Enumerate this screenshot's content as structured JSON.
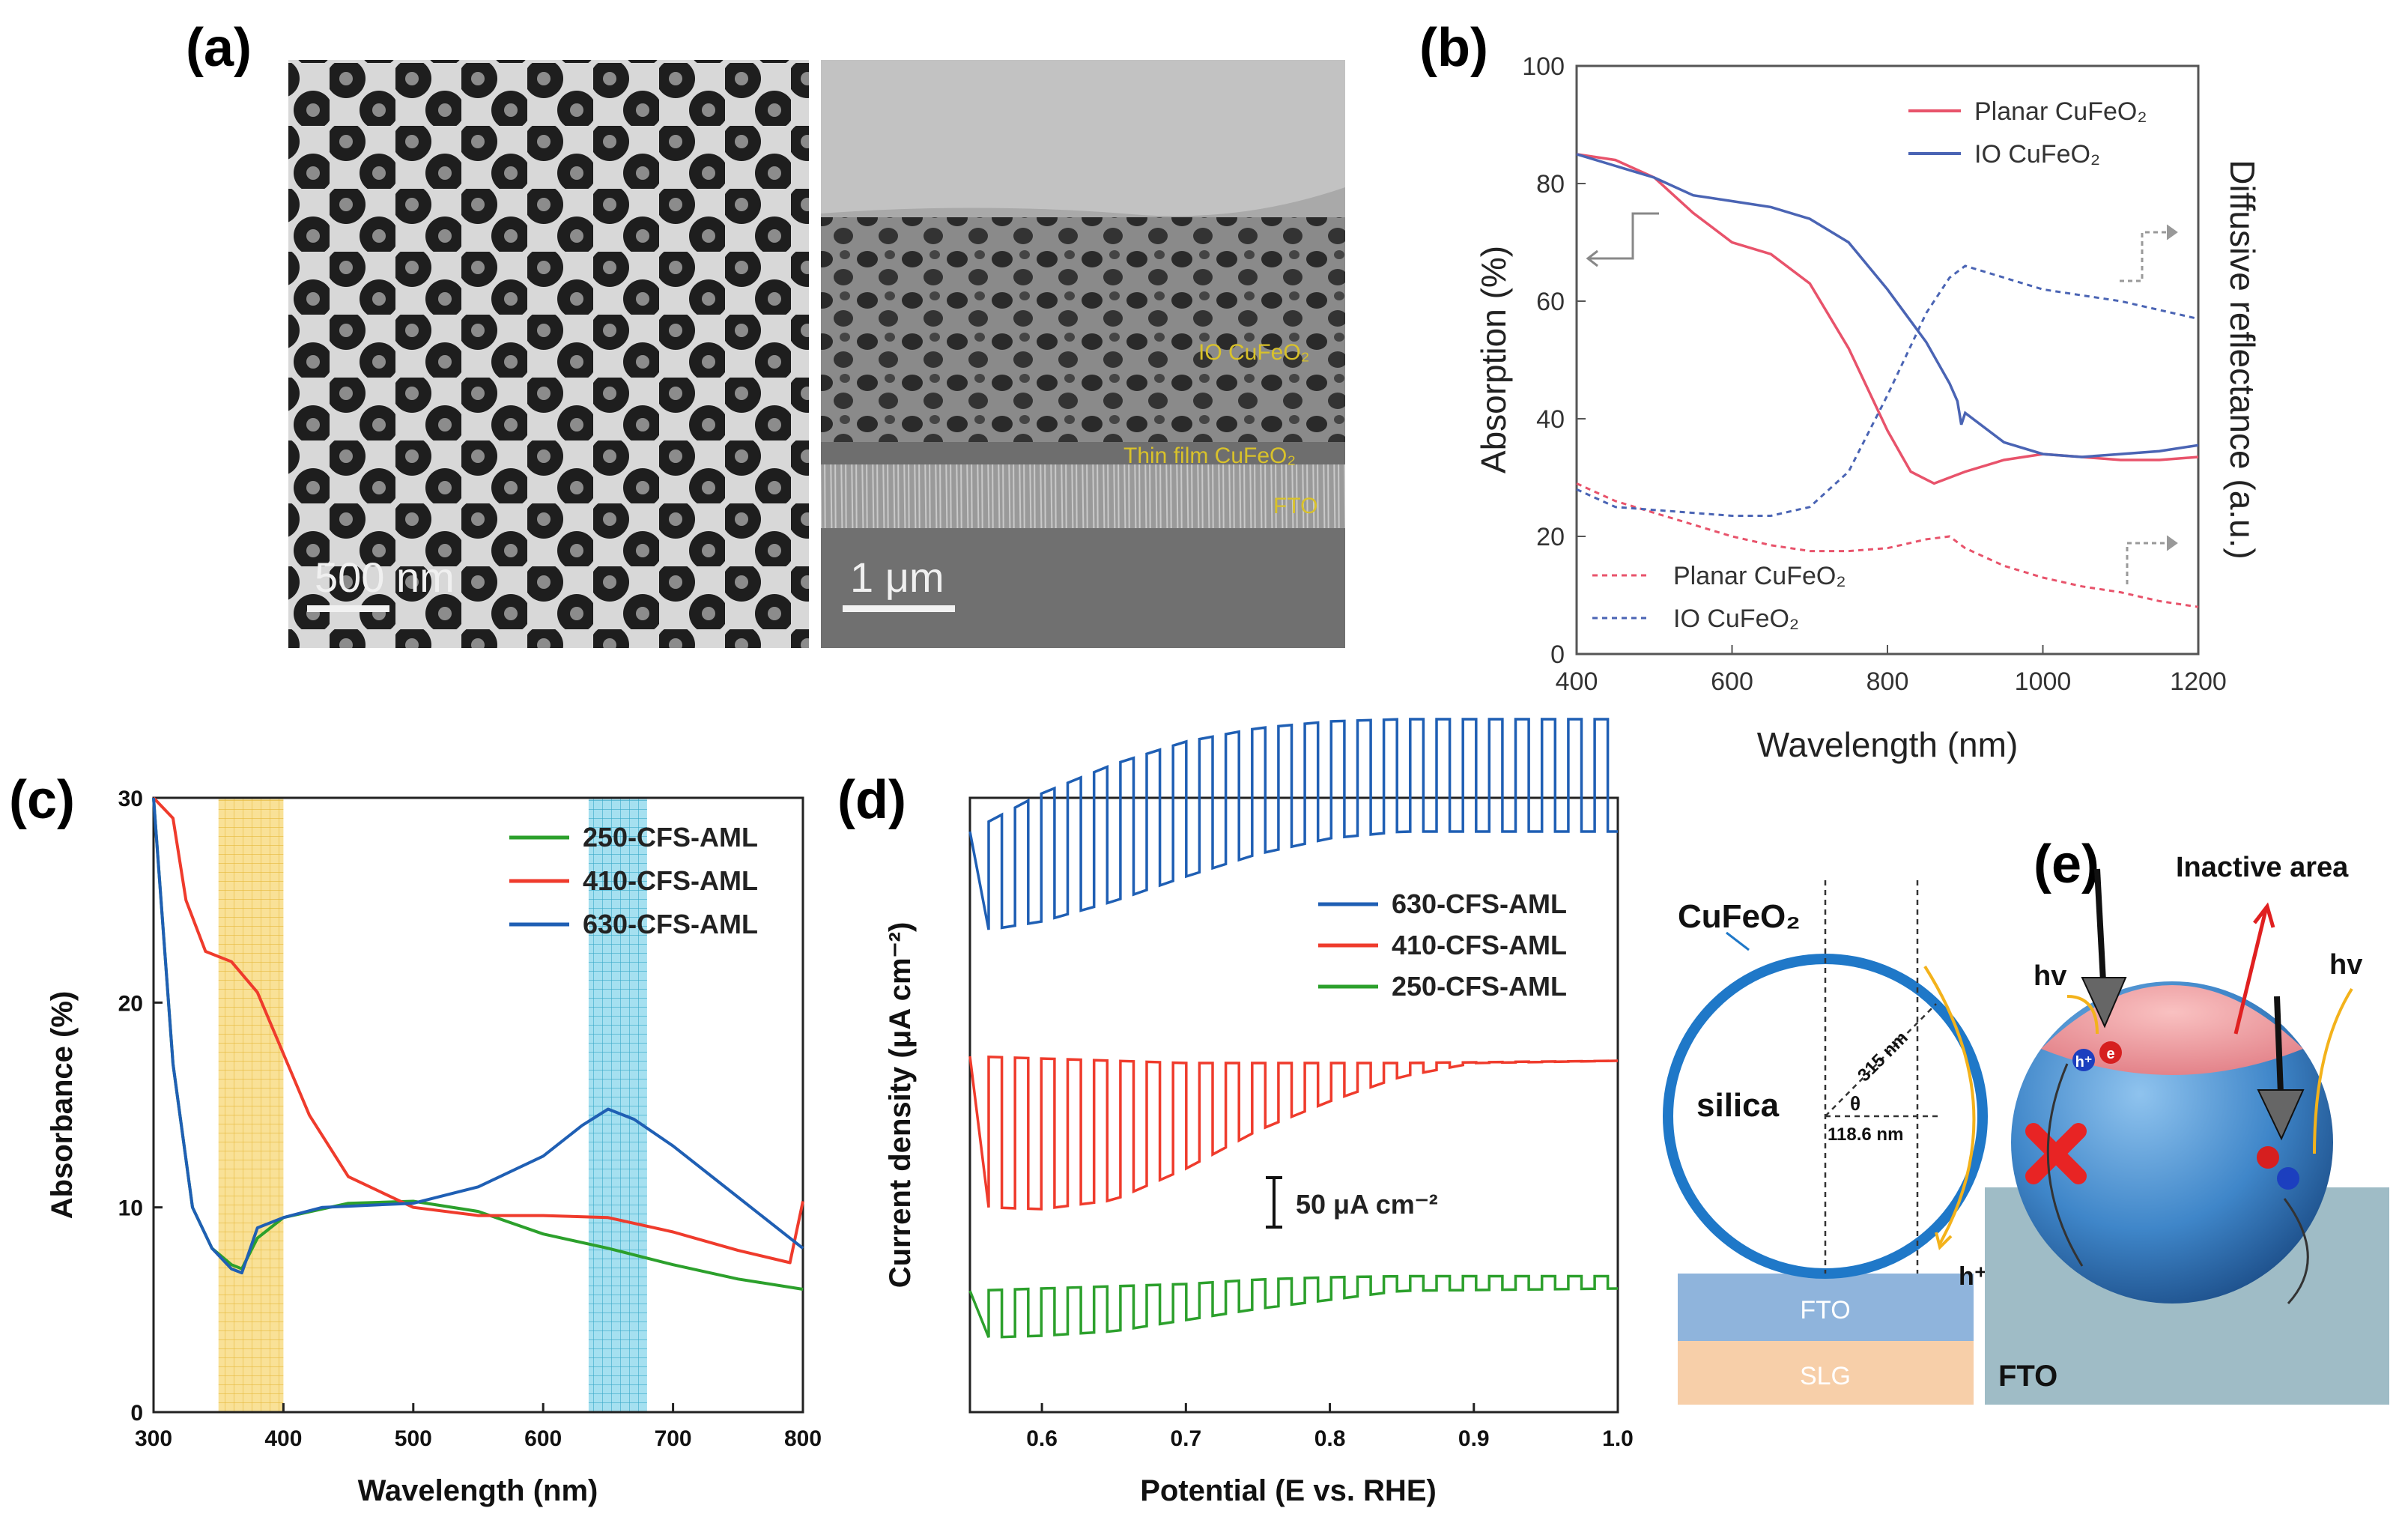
{
  "panels": {
    "a": "(a)",
    "b": "(b)",
    "c": "(c)",
    "d": "(d)",
    "e": "(e)"
  },
  "sem": {
    "left_scale": "500 nm",
    "right_scale": "1 μm",
    "layer_io": "IO CuFeO₂",
    "layer_thin": "Thin film CuFeO₂",
    "layer_fto": "FTO"
  },
  "diagram_e": {
    "cufeo2": "CuFeO₂",
    "silica": "silica",
    "radius": "315 nm",
    "theta": "θ",
    "offset": "118.6 nm",
    "hplus": "h⁺",
    "fto_left": "FTO",
    "slg": "SLG",
    "inactive": "Inactive area",
    "hv1": "hv",
    "hv2": "hv",
    "fto_right": "FTO",
    "e_minus": "e",
    "h_plus_ball": "h⁺"
  },
  "colors": {
    "blue": "#1f5fb4",
    "red": "#ef3b2c",
    "green": "#2ca02c",
    "pink": "#e8536b",
    "slate": "#4a64b4",
    "yellow_band": "#f7d774",
    "cyan_band": "#7fd3ea"
  },
  "chart_data": [
    {
      "id": "b",
      "type": "line",
      "xlabel": "Wavelength  (nm)",
      "ylabel": "Absorption  (%)",
      "ylabel_right": "Diffusive  reflectance  (a.u.)",
      "xlim": [
        400,
        1200
      ],
      "ylim": [
        0,
        100
      ],
      "xticks": [
        400,
        600,
        800,
        1000,
        1200
      ],
      "yticks": [
        0,
        20,
        40,
        60,
        80,
        100
      ],
      "legend_solid": [
        "Planar CuFeO₂",
        "IO CuFeO₂"
      ],
      "legend_dashed": [
        "Planar CuFeO₂",
        "IO CuFeO₂"
      ],
      "series": [
        {
          "name": "Planar CuFeO₂ (absorption)",
          "style": "solid",
          "color": "#e8536b",
          "x": [
            400,
            450,
            500,
            550,
            600,
            650,
            700,
            750,
            800,
            830,
            860,
            880,
            900,
            950,
            1000,
            1050,
            1100,
            1150,
            1200
          ],
          "y": [
            85,
            84,
            81,
            75,
            70,
            68,
            63,
            52,
            38,
            31,
            29,
            30,
            31,
            33,
            34,
            33.5,
            33,
            33,
            33.5
          ]
        },
        {
          "name": "IO CuFeO₂ (absorption)",
          "style": "solid",
          "color": "#4a64b4",
          "x": [
            400,
            450,
            500,
            550,
            600,
            650,
            700,
            750,
            800,
            850,
            880,
            890,
            895,
            900,
            950,
            1000,
            1050,
            1100,
            1150,
            1200
          ],
          "y": [
            85,
            83,
            81,
            78,
            77,
            76,
            74,
            70,
            62,
            53,
            46,
            43,
            39,
            41,
            36,
            34,
            33.5,
            34,
            34.5,
            35.5
          ]
        },
        {
          "name": "Planar CuFeO₂ (reflectance)",
          "style": "dashed",
          "color": "#e8536b",
          "x": [
            400,
            450,
            500,
            550,
            600,
            650,
            700,
            750,
            800,
            850,
            880,
            900,
            950,
            1000,
            1050,
            1100,
            1150,
            1200
          ],
          "y": [
            29,
            26,
            24,
            22,
            20,
            18.5,
            17.5,
            17.5,
            18,
            19.5,
            20,
            18,
            15,
            13,
            11.5,
            10.5,
            9,
            8
          ]
        },
        {
          "name": "IO CuFeO₂ (reflectance)",
          "style": "dashed",
          "color": "#4a64b4",
          "x": [
            400,
            450,
            500,
            550,
            600,
            650,
            700,
            750,
            800,
            850,
            880,
            900,
            950,
            1000,
            1050,
            1100,
            1150,
            1200
          ],
          "y": [
            28,
            25,
            24.5,
            24,
            23.5,
            23.5,
            25,
            31,
            44,
            58,
            64,
            66,
            64,
            62,
            61,
            60,
            58.5,
            57
          ]
        }
      ]
    },
    {
      "id": "c",
      "type": "line",
      "xlabel": "Wavelength (nm)",
      "ylabel": "Absorbance (%)",
      "xlim": [
        300,
        800
      ],
      "ylim": [
        0,
        30
      ],
      "xticks": [
        300,
        400,
        500,
        600,
        700,
        800
      ],
      "yticks": [
        0,
        10,
        20,
        30
      ],
      "highlight_bands": [
        [
          350,
          400
        ],
        [
          635,
          680
        ]
      ],
      "series": [
        {
          "name": "250-CFS-AML",
          "color": "#2ca02c",
          "x": [
            300,
            315,
            330,
            345,
            360,
            368,
            380,
            400,
            450,
            500,
            550,
            600,
            650,
            700,
            750,
            800
          ],
          "y": [
            30,
            17,
            10,
            8,
            7.2,
            7,
            8.5,
            9.5,
            10.2,
            10.3,
            9.8,
            8.7,
            8,
            7.2,
            6.5,
            6
          ]
        },
        {
          "name": "410-CFS-AML",
          "color": "#ef3b2c",
          "x": [
            300,
            315,
            325,
            340,
            360,
            380,
            400,
            420,
            450,
            500,
            550,
            600,
            650,
            700,
            750,
            790,
            800
          ],
          "y": [
            30,
            29,
            25,
            22.5,
            22,
            20.5,
            17.5,
            14.5,
            11.5,
            10,
            9.6,
            9.6,
            9.5,
            8.8,
            7.9,
            7.3,
            10.3
          ]
        },
        {
          "name": "630-CFS-AML",
          "color": "#1f5fb4",
          "x": [
            300,
            315,
            330,
            345,
            360,
            368,
            380,
            400,
            430,
            500,
            550,
            600,
            630,
            650,
            670,
            700,
            750,
            790,
            800
          ],
          "y": [
            30,
            17,
            10,
            8,
            7,
            6.8,
            9,
            9.5,
            10,
            10.2,
            11,
            12.5,
            14,
            14.8,
            14.3,
            13,
            10.5,
            8.5,
            8
          ]
        }
      ]
    },
    {
      "id": "d",
      "type": "line",
      "xlabel": "Potential (E vs. RHE)",
      "ylabel": "Current density (μA cm⁻²)",
      "xlim": [
        0.55,
        1.0
      ],
      "xticks": [
        0.6,
        0.7,
        0.8,
        0.9,
        1.0
      ],
      "scale_bar": "50 μA cm⁻²",
      "chopped_light": {
        "chop_period_V": 0.0183,
        "first_edge_V": 0.563
      },
      "series": [
        {
          "name": "630-CFS-AML",
          "color": "#1f5fb4",
          "offset": 110,
          "light_envelope": {
            "x": [
              0.55,
              0.6,
              0.65,
              0.7,
              0.75,
              0.8,
              0.85,
              1.0
            ],
            "y": [
              0,
              17,
              30,
              40,
              46,
              49,
              50,
              50
            ]
          },
          "dark_envelope": {
            "x": [
              0.55,
              0.6,
              0.65,
              0.7,
              0.75,
              0.8,
              0.85,
              1.0
            ],
            "y": [
              -45,
              -40,
              -31,
              -20,
              -10,
              -3,
              0,
              0
            ]
          }
        },
        {
          "name": "410-CFS-AML",
          "color": "#ef3b2c",
          "offset": 0,
          "light_envelope": {
            "x": [
              0.55,
              0.6,
              0.65,
              0.7,
              0.75,
              0.8,
              0.85,
              1.0
            ],
            "y": [
              0,
              -1,
              -2,
              -3,
              -3,
              -3,
              -3,
              -2
            ]
          },
          "dark_envelope": {
            "x": [
              0.55,
              0.6,
              0.65,
              0.7,
              0.75,
              0.8,
              0.85,
              0.9,
              1.0
            ],
            "y": [
              -67,
              -68,
              -64,
              -50,
              -33,
              -20,
              -9,
              -3,
              -2
            ]
          }
        },
        {
          "name": "250-CFS-AML",
          "color": "#2ca02c",
          "offset": -102,
          "light_envelope": {
            "x": [
              0.55,
              0.6,
              0.65,
              0.7,
              0.75,
              0.8,
              0.85,
              1.0
            ],
            "y": [
              -1,
              0,
              1,
              2,
              4,
              5,
              5.5,
              5.5
            ]
          },
          "dark_envelope": {
            "x": [
              0.55,
              0.6,
              0.65,
              0.7,
              0.75,
              0.8,
              0.85,
              1.0
            ],
            "y": [
              -22,
              -21,
              -19,
              -14,
              -9,
              -5,
              -1,
              0
            ]
          }
        }
      ]
    }
  ]
}
